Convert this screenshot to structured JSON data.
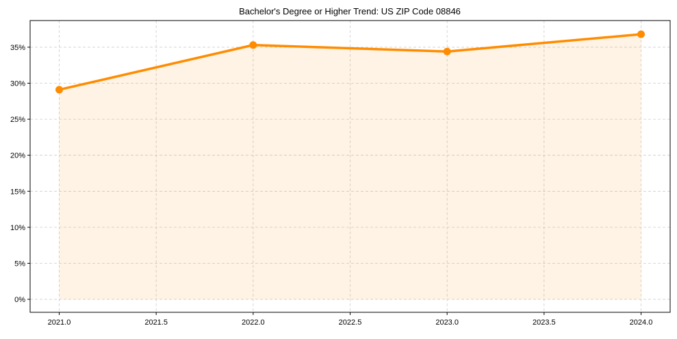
{
  "chart_data": {
    "type": "line",
    "title": "Bachelor's Degree or Higher Trend: US ZIP Code 08846",
    "xlabel": "",
    "ylabel": "",
    "x": [
      2021,
      2022,
      2023,
      2024
    ],
    "series": [
      {
        "name": "Bachelor's Degree or Higher",
        "values": [
          29.1,
          35.3,
          34.4,
          36.8
        ],
        "color": "#ff8c00",
        "fill": true
      }
    ],
    "xlim": [
      2020.85,
      2024.15
    ],
    "ylim": [
      -1.8,
      38.7
    ],
    "xticks": [
      2021.0,
      2021.5,
      2022.0,
      2022.5,
      2023.0,
      2023.5,
      2024.0
    ],
    "xtick_labels": [
      "2021.0",
      "2021.5",
      "2022.0",
      "2022.5",
      "2023.0",
      "2023.5",
      "2024.0"
    ],
    "yticks": [
      0,
      5,
      10,
      15,
      20,
      25,
      30,
      35
    ],
    "ytick_labels": [
      "0%",
      "5%",
      "10%",
      "15%",
      "20%",
      "25%",
      "30%",
      "35%"
    ],
    "grid": true,
    "legend": "none"
  }
}
